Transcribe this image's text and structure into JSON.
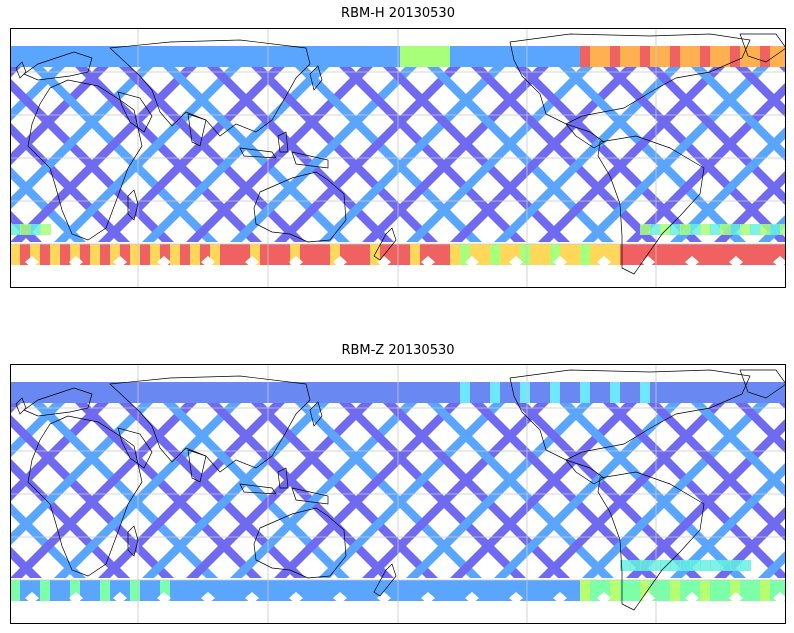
{
  "panels": [
    {
      "title": "RBM-H 20130530",
      "colors": {
        "swath_main": "#6f6af0",
        "swath_edge": "#5aa6ff",
        "north_band": "#5aa6ff",
        "north_hot_a": "#ffb050",
        "north_hot_b": "#f06262",
        "north_warm": "#a8ff7a",
        "south_band": "#f06262",
        "south_warm": "#ffd85a",
        "south_green": "#a8ff7a",
        "cyan": "#66f0e0"
      }
    },
    {
      "title": "RBM-Z 20130530",
      "colors": {
        "swath_main": "#6f6af0",
        "swath_edge": "#5aa6ff",
        "north_band": "#6a88f2",
        "north_warm": "#6ee8ff",
        "south_band": "#5aa6ff",
        "south_warm": "#7cffa8",
        "south_green": "#b8ff70",
        "cyan": "#66f0e0"
      }
    }
  ],
  "map": {
    "background": "#ffffff",
    "coastline_color": "#000000",
    "gridline_color": "#c8c8c8",
    "frame_color": "#000000"
  }
}
